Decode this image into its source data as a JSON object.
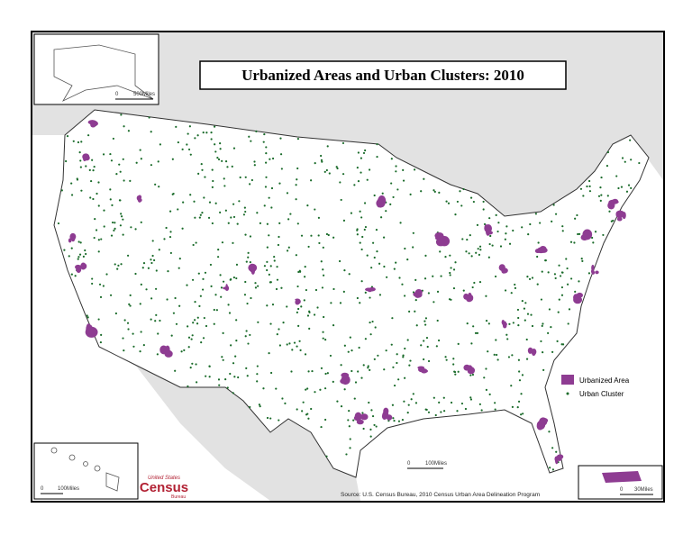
{
  "title": "Urbanized Areas and Urban Clusters: 2010",
  "legend": {
    "items": [
      "Urbanized Area",
      "Urban Cluster"
    ]
  },
  "source": "Source:  U.S. Census Bureau, 2010 Census Urban Area Delineation Program",
  "scale_bars": {
    "main": [
      "0",
      "100Miles"
    ],
    "alaska": [
      "0",
      "500Miles"
    ],
    "hawaii": [
      "0",
      "100Miles"
    ],
    "puerto_rico": [
      "0",
      "30Miles"
    ]
  },
  "logo": {
    "top": "United States",
    "main": "Census",
    "bottom": "Bureau"
  }
}
